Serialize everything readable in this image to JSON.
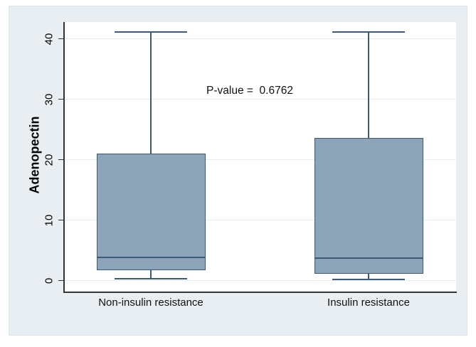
{
  "chart_data": {
    "type": "box",
    "title": "",
    "ylabel": "Adenopectin",
    "xlabel": "",
    "annotation": "P-value =  0.6762",
    "categories": [
      "Non-insulin resistance",
      "Insulin resistance"
    ],
    "yticks": [
      0,
      10,
      20,
      30,
      40
    ],
    "ylim": [
      0,
      42.5
    ],
    "grid": true,
    "legend": false,
    "series": [
      {
        "category": "Non-insulin resistance",
        "whisker_low": 0.3,
        "q1": 1.7,
        "median": 3.8,
        "q3": 21.0,
        "whisker_high": 41.1
      },
      {
        "category": "Insulin resistance",
        "whisker_low": 0.2,
        "q1": 1.1,
        "median": 3.7,
        "q3": 23.6,
        "whisker_high": 41.1
      }
    ],
    "colors": {
      "box_fill": "#8ca3b8",
      "box_stroke": "#3a5a78",
      "figure_bg": "#e8eef1",
      "plot_bg": "#ffffff",
      "gridline": "#e6edf0",
      "axis": "#2f3439",
      "text": "#000000"
    }
  }
}
